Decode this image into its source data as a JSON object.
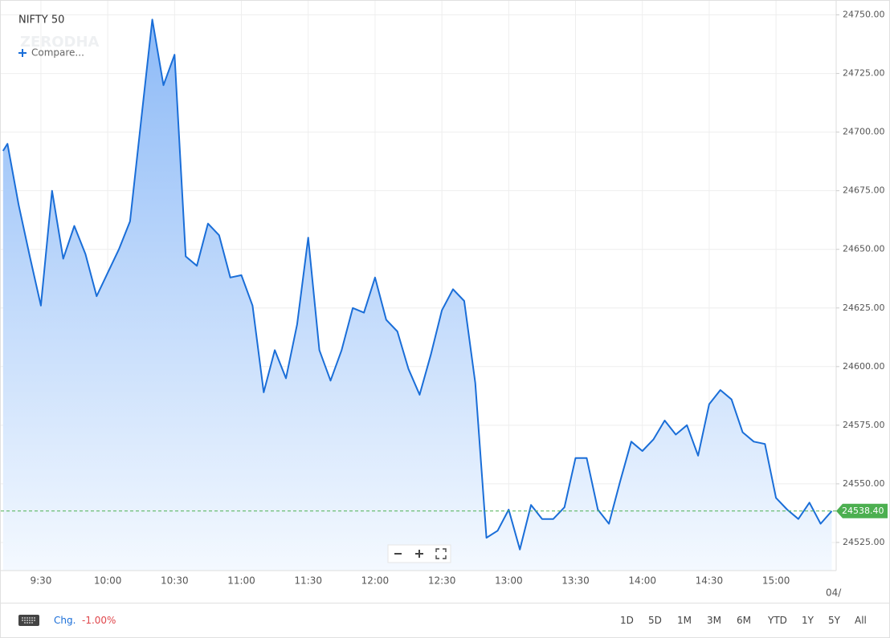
{
  "chart_data": {
    "type": "line",
    "title": "NIFTY 50",
    "color": "#1a6ed8",
    "x": [
      "9:13",
      "9:15",
      "9:20",
      "9:25",
      "9:30",
      "9:35",
      "9:40",
      "9:45",
      "9:50",
      "9:55",
      "10:00",
      "10:05",
      "10:10",
      "10:15",
      "10:20",
      "10:25",
      "10:30",
      "10:35",
      "10:40",
      "10:45",
      "10:50",
      "10:55",
      "11:00",
      "11:05",
      "11:10",
      "11:15",
      "11:20",
      "11:25",
      "11:30",
      "11:35",
      "11:40",
      "11:45",
      "11:50",
      "11:55",
      "12:00",
      "12:05",
      "12:10",
      "12:15",
      "12:20",
      "12:25",
      "12:30",
      "12:35",
      "12:40",
      "12:45",
      "12:50",
      "12:55",
      "13:00",
      "13:05",
      "13:10",
      "13:15",
      "13:20",
      "13:25",
      "13:30",
      "13:35",
      "13:40",
      "13:45",
      "13:50",
      "13:55",
      "14:00",
      "14:05",
      "14:10",
      "14:15",
      "14:20",
      "14:25",
      "14:30",
      "14:35",
      "14:40",
      "14:45",
      "14:50",
      "14:55",
      "15:00",
      "15:05",
      "15:10",
      "15:15",
      "15:20",
      "15:25"
    ],
    "values": [
      24692,
      24695,
      24669,
      24647,
      24626,
      24675,
      24646,
      24660,
      24648,
      24630,
      24640,
      24650,
      24662,
      24705,
      24748,
      24720,
      24733,
      24647,
      24643,
      24661,
      24656,
      24638,
      24639,
      24626,
      24589,
      24607,
      24595,
      24618,
      24655,
      24607,
      24594,
      24607,
      24625,
      24623,
      24638,
      24620,
      24615,
      24599,
      24588,
      24605,
      24624,
      24633,
      24628,
      24593,
      24527,
      24530,
      24539,
      24522,
      24541,
      24535,
      24535,
      24540,
      24561,
      24561,
      24539,
      24533,
      24551,
      24568,
      24564,
      24569,
      24577,
      24571,
      24575,
      24562,
      24584,
      24590,
      24586,
      24572,
      24568,
      24567,
      24544,
      24539,
      24535,
      24542,
      24533,
      24538.4
    ],
    "xlim": [
      "9:12",
      "15:27"
    ],
    "xticks": [
      "9:30",
      "10:00",
      "10:30",
      "11:00",
      "11:30",
      "12:00",
      "12:30",
      "13:00",
      "13:30",
      "14:00",
      "14:30",
      "15:00"
    ],
    "ylim": [
      24513,
      24756
    ],
    "yticks": [
      {
        "value": 24525,
        "label": "24525.00"
      },
      {
        "value": 24550,
        "label": "24550.00"
      },
      {
        "value": 24575,
        "label": "24575.00"
      },
      {
        "value": 24600,
        "label": "24600.00"
      },
      {
        "value": 24625,
        "label": "24625.00"
      },
      {
        "value": 24650,
        "label": "24650.00"
      },
      {
        "value": 24675,
        "label": "24675.00"
      },
      {
        "value": 24700,
        "label": "24700.00"
      },
      {
        "value": 24725,
        "label": "24725.00"
      },
      {
        "value": 24750,
        "label": "24750.00"
      }
    ],
    "grid": true,
    "last_price": {
      "value": 24538.4,
      "label": "24538.40",
      "color": "#4caf50"
    },
    "x_overflow_label": "04/"
  },
  "compare": "Compare...",
  "watermark": "ZERODHA",
  "footer": {
    "change_label": "Chg.",
    "change_value": "-1.00%",
    "ranges": [
      "1D",
      "5D",
      "1M",
      "3M",
      "6M",
      "YTD",
      "1Y",
      "5Y",
      "All"
    ]
  }
}
